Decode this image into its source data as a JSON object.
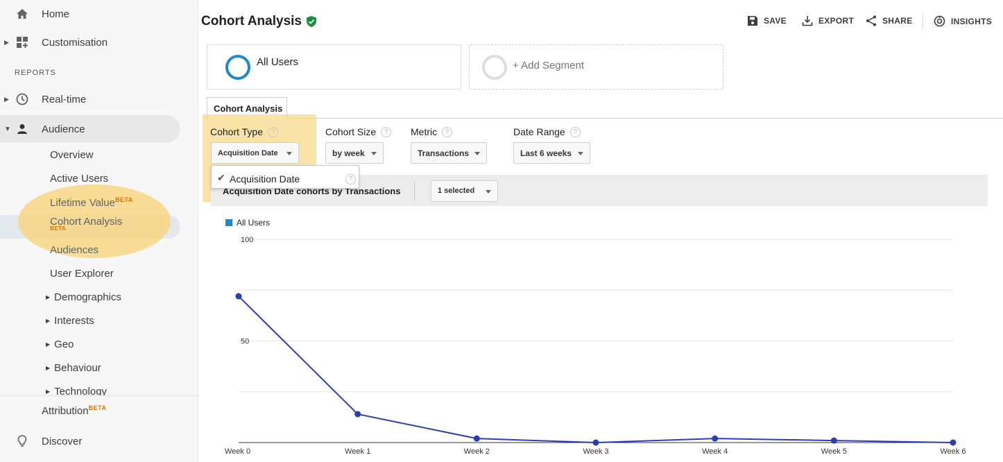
{
  "sidebar": {
    "home": "Home",
    "customisation": "Customisation",
    "reports_heading": "REPORTS",
    "realtime": "Real-time",
    "audience": "Audience",
    "audience_items": {
      "overview": "Overview",
      "active_users": "Active Users",
      "lifetime_value": "Lifetime Value",
      "lifetime_value_badge": "BETA",
      "cohort_analysis": "Cohort Analysis",
      "cohort_analysis_badge": "BETA",
      "audiences": "Audiences",
      "user_explorer": "User Explorer",
      "demographics": "Demographics",
      "interests": "Interests",
      "geo": "Geo",
      "behaviour": "Behaviour",
      "technology": "Technology"
    },
    "attribution": "Attribution",
    "attribution_badge": "BETA",
    "discover": "Discover"
  },
  "header": {
    "title": "Cohort Analysis",
    "save": "SAVE",
    "export": "EXPORT",
    "share": "SHARE",
    "insights": "INSIGHTS"
  },
  "segments": {
    "active": "All Users",
    "add": "+ Add Segment"
  },
  "tab": {
    "label": "Cohort Analysis"
  },
  "controls": {
    "cohort_type_label": "Cohort Type",
    "cohort_type_value": "Acquisition Date",
    "cohort_size_label": "Cohort Size",
    "cohort_size_value": "by week",
    "metric_label": "Metric",
    "metric_value": "Transactions",
    "date_range_label": "Date Range",
    "date_range_value": "Last 6 weeks",
    "menu_option": "Acquisition Date"
  },
  "chart_header": {
    "title": "Acquisition Date cohorts by Transactions",
    "selected": "1 selected"
  },
  "chart_data": {
    "type": "line",
    "categories": [
      "Week 0",
      "Week 1",
      "Week 2",
      "Week 3",
      "Week 4",
      "Week 5",
      "Week 6"
    ],
    "series": [
      {
        "name": "All Users",
        "values": [
          72,
          14,
          2,
          0,
          2,
          1,
          0
        ],
        "color": "#2a3eb1"
      }
    ],
    "ylim": [
      0,
      100
    ],
    "yticks": [
      50,
      100
    ],
    "grid": true,
    "legend": "top-left"
  },
  "colors": {
    "accent": "#1f88c9",
    "line": "#2a3eb1",
    "beta": "#e37400",
    "highlight": "#f8d478",
    "verified": "#1e8e3e"
  }
}
